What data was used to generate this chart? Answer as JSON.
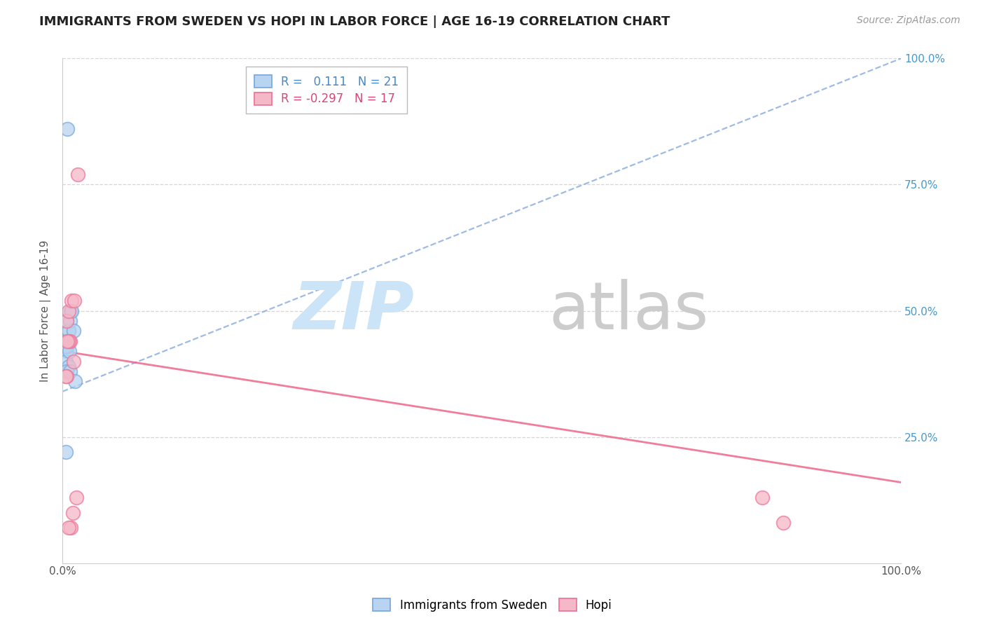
{
  "title": "IMMIGRANTS FROM SWEDEN VS HOPI IN LABOR FORCE | AGE 16-19 CORRELATION CHART",
  "source": "Source: ZipAtlas.com",
  "ylabel": "In Labor Force | Age 16-19",
  "xlim": [
    0,
    1
  ],
  "ylim": [
    0,
    1
  ],
  "x_tick_labels": [
    "0.0%",
    "100.0%"
  ],
  "x_tick_positions": [
    0.0,
    1.0
  ],
  "y_tick_labels": [
    "25.0%",
    "50.0%",
    "75.0%",
    "100.0%"
  ],
  "y_tick_positions": [
    0.25,
    0.5,
    0.75,
    1.0
  ],
  "legend_blue_r": "0.111",
  "legend_blue_n": "21",
  "legend_pink_r": "-0.297",
  "legend_pink_n": "17",
  "blue_fill": "#b8d4f0",
  "blue_edge": "#7aabde",
  "pink_fill": "#f5b8c8",
  "pink_edge": "#ee7799",
  "trend_blue_color": "#88aadd",
  "trend_pink_color": "#ee6688",
  "blue_scatter_x": [
    0.006,
    0.01,
    0.004,
    0.005,
    0.007,
    0.008,
    0.005,
    0.006,
    0.004,
    0.007,
    0.009,
    0.011,
    0.013,
    0.006,
    0.004,
    0.007,
    0.005,
    0.008,
    0.004,
    0.009,
    0.015
  ],
  "blue_scatter_y": [
    0.86,
    0.5,
    0.44,
    0.48,
    0.46,
    0.44,
    0.42,
    0.43,
    0.43,
    0.46,
    0.48,
    0.5,
    0.46,
    0.44,
    0.4,
    0.39,
    0.38,
    0.42,
    0.22,
    0.38,
    0.36
  ],
  "pink_scatter_x": [
    0.005,
    0.007,
    0.018,
    0.011,
    0.014,
    0.009,
    0.007,
    0.006,
    0.005,
    0.004,
    0.017,
    0.012,
    0.01,
    0.007,
    0.835,
    0.86,
    0.013
  ],
  "pink_scatter_y": [
    0.48,
    0.5,
    0.77,
    0.52,
    0.52,
    0.44,
    0.44,
    0.44,
    0.37,
    0.37,
    0.13,
    0.1,
    0.07,
    0.07,
    0.13,
    0.08,
    0.4
  ],
  "blue_trend_x0": 0.0,
  "blue_trend_x1": 1.0,
  "blue_trend_y0": 0.34,
  "blue_trend_y1": 1.0,
  "pink_trend_x0": 0.0,
  "pink_trend_x1": 1.0,
  "pink_trend_y0": 0.42,
  "pink_trend_y1": 0.16,
  "grid_color": "#cccccc",
  "grid_linestyle": "--",
  "spine_color": "#cccccc",
  "title_fontsize": 13,
  "axis_fontsize": 11,
  "right_tick_color": "#4499cc",
  "source_color": "#999999",
  "watermark_zip_color": "#cce4f7",
  "watermark_atlas_color": "#cccccc"
}
